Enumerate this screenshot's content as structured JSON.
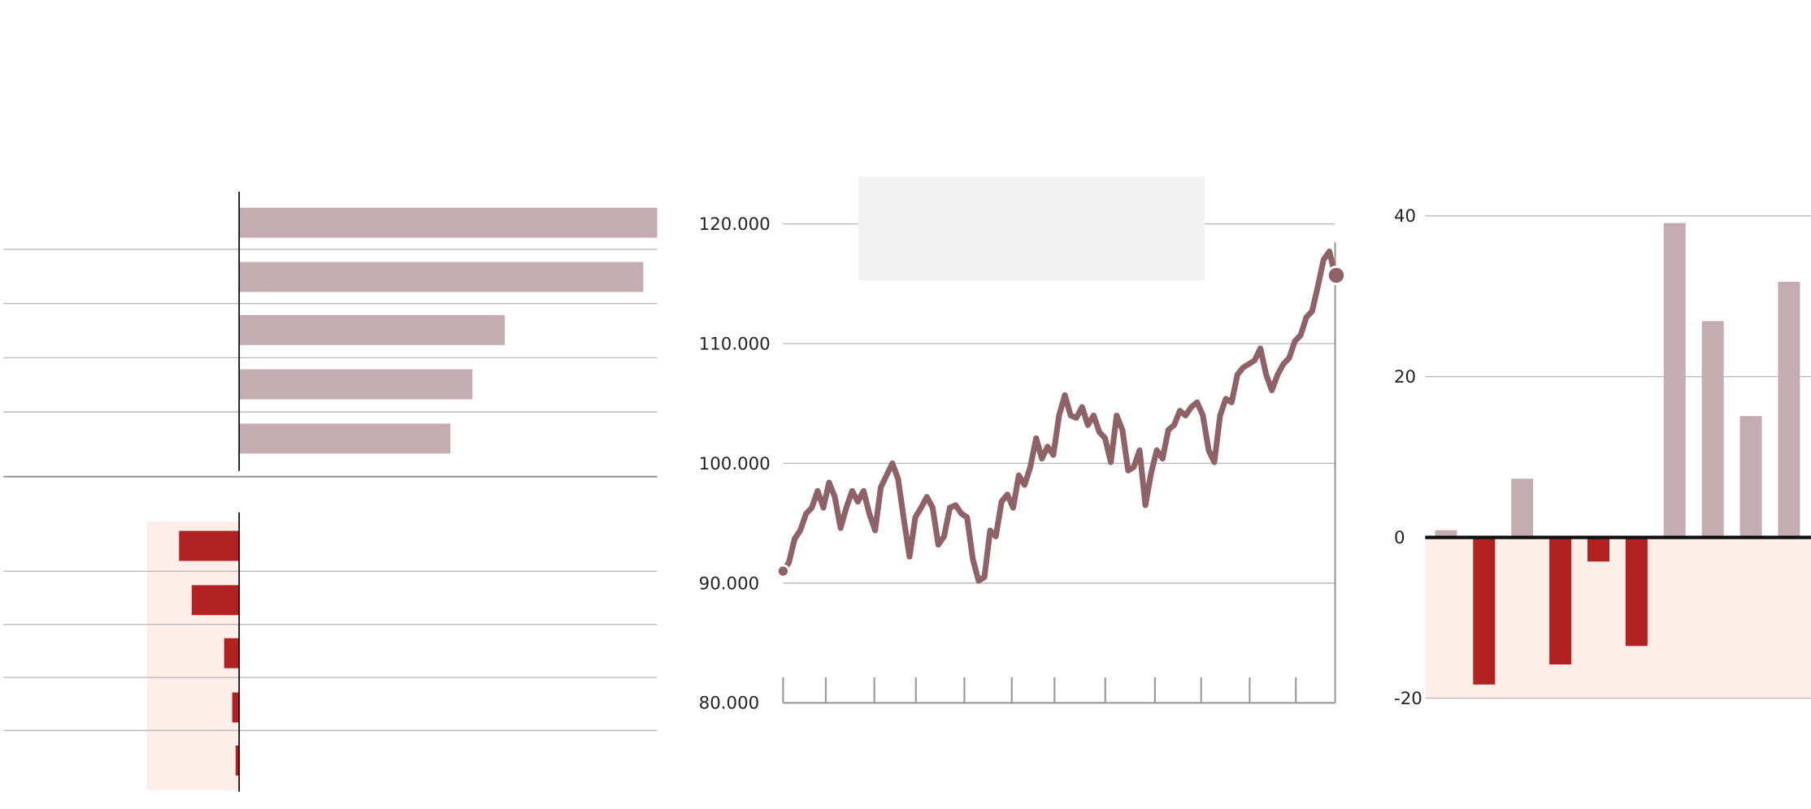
{
  "chart_data": [
    {
      "type": "hbar",
      "values": [
        362,
        350,
        230,
        202,
        183
      ],
      "color": "#c4adb0",
      "xlim": [
        -204,
        362
      ]
    },
    {
      "type": "hbar",
      "values": [
        -52,
        -41,
        -13,
        -6,
        -3
      ],
      "color": "#b22222",
      "xlim": [
        -204,
        362
      ]
    },
    {
      "type": "line",
      "color": "#8e6266",
      "values": [
        91000,
        91700,
        93700,
        94400,
        95800,
        96300,
        97700,
        96300,
        98400,
        97200,
        94600,
        96300,
        97700,
        96800,
        97700,
        95800,
        94400,
        98000,
        99000,
        100000,
        98700,
        95300,
        92200,
        95500,
        96300,
        97200,
        96300,
        93200,
        93900,
        96300,
        96500,
        95800,
        95500,
        92000,
        90200,
        90500,
        94400,
        93900,
        96800,
        97400,
        96300,
        99000,
        98200,
        99700,
        102100,
        100400,
        101400,
        100700,
        104000,
        105700,
        104000,
        103800,
        104700,
        103200,
        104000,
        102600,
        102100,
        100100,
        104000,
        102800,
        99400,
        99700,
        101100,
        96500,
        99200,
        101100,
        100400,
        102800,
        103200,
        104400,
        104000,
        104700,
        105100,
        104000,
        101100,
        100100,
        104000,
        105400,
        105100,
        107400,
        108000,
        108300,
        108600,
        109600,
        107400,
        106100,
        107400,
        108300,
        108800,
        110200,
        110700,
        112200,
        112700,
        114800,
        117000,
        117700,
        115700
      ],
      "ylim": [
        80000,
        120000
      ],
      "yticks": [
        {
          "value": 80000,
          "label": "80.000"
        },
        {
          "value": 90000,
          "label": "90.000"
        },
        {
          "value": 100000,
          "label": "100.000"
        },
        {
          "value": 110000,
          "label": "110.000"
        },
        {
          "value": 120000,
          "label": "120.000"
        }
      ],
      "grid": true
    },
    {
      "type": "bar",
      "values": [
        0.9,
        -18.3,
        7.3,
        -15.8,
        -3.0,
        -13.5,
        39.1,
        26.9,
        15.1,
        31.8
      ],
      "color": "#c4adb0",
      "negative_color": "#b22222",
      "ylim": [
        -20,
        40
      ],
      "yticks": [
        -20,
        0,
        20,
        40
      ],
      "grid": true
    }
  ]
}
